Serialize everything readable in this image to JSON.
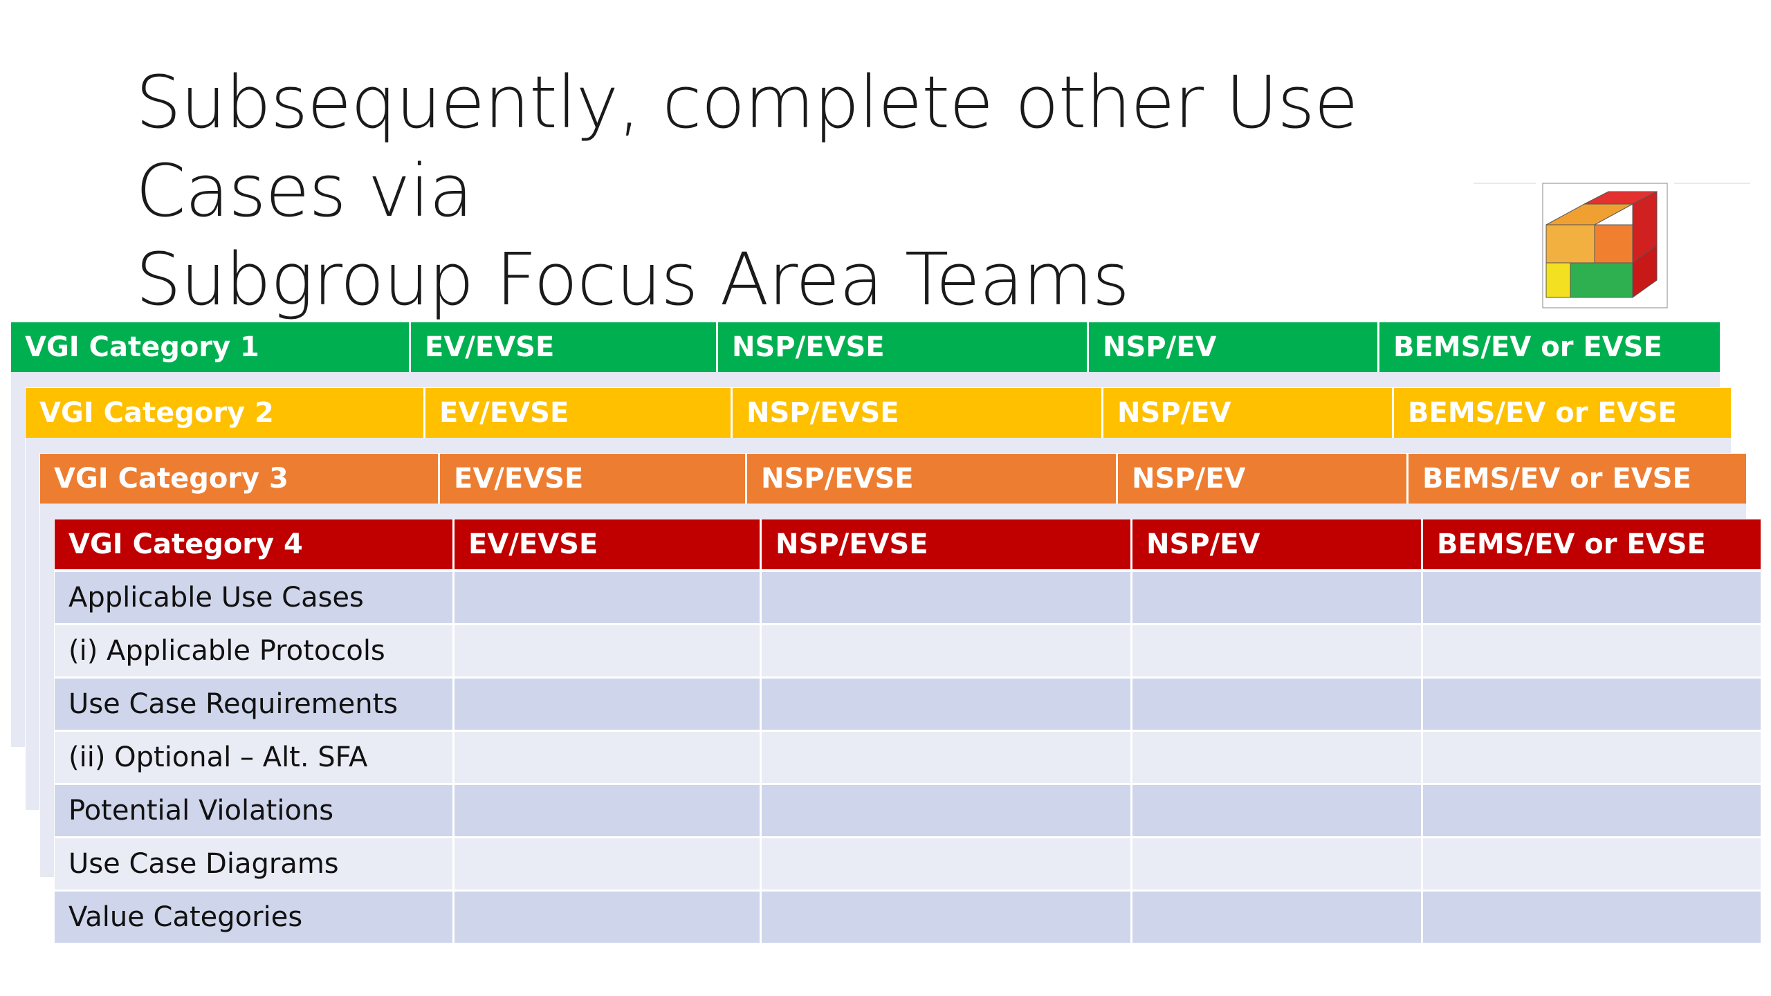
{
  "slide": {
    "title_line1": "Subsequently, complete other Use Cases via",
    "title_line2": "Subgroup Focus Area Teams"
  },
  "colors": {
    "cat1": "#00b050",
    "cat2": "#ffc000",
    "cat3": "#ed7d31",
    "cat4": "#c00000",
    "row_dark": "#cfd5ea",
    "row_light": "#e9ebf5"
  },
  "columns": [
    "EV/EVSE",
    "NSP/EVSE",
    "NSP/EV",
    "BEMS/EV or EVSE"
  ],
  "categories": [
    {
      "label": "VGI Category 1"
    },
    {
      "label": "VGI Category 2"
    },
    {
      "label": "VGI Category 3"
    },
    {
      "label": "VGI Category 4"
    }
  ],
  "rows": [
    "Applicable Use Cases",
    "(i) Applicable Protocols",
    "Use Case Requirements",
    "(ii) Optional – Alt. SFA",
    "Potential Violations",
    "Use Case Diagrams",
    "Value Categories"
  ]
}
